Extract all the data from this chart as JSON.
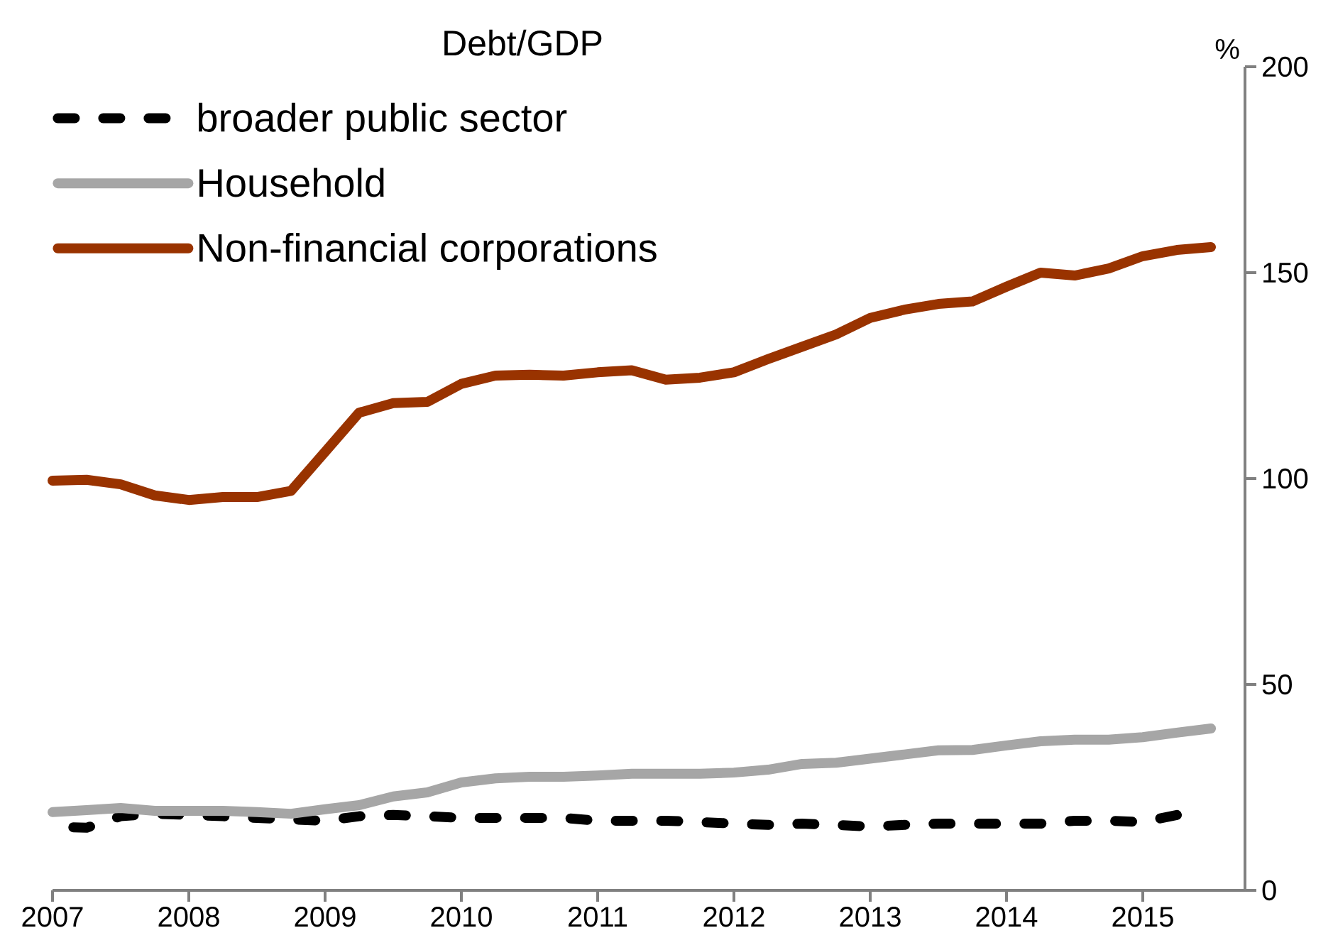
{
  "chart_data": {
    "type": "line",
    "title": "Debt/GDP",
    "ylabel": "%",
    "x": [
      2007.0,
      2007.25,
      2007.5,
      2007.75,
      2008.0,
      2008.25,
      2008.5,
      2008.75,
      2009.0,
      2009.25,
      2009.5,
      2009.75,
      2010.0,
      2010.25,
      2010.5,
      2010.75,
      2011.0,
      2011.25,
      2011.5,
      2011.75,
      2012.0,
      2012.25,
      2012.5,
      2012.75,
      2013.0,
      2013.25,
      2013.5,
      2013.75,
      2014.0,
      2014.25,
      2014.5,
      2014.75,
      2015.0,
      2015.25,
      2015.5
    ],
    "series": [
      {
        "name": "broader public sector",
        "color": "#000000",
        "line_style": "dashed",
        "values": [
          15.5,
          15.2,
          18,
          18.6,
          18.3,
          18,
          17.6,
          17.2,
          16.9,
          18,
          18.3,
          18,
          17.6,
          17.6,
          17.6,
          17.6,
          16.9,
          16.9,
          16.9,
          16.6,
          16.2,
          15.9,
          16.2,
          15.9,
          15.5,
          15.9,
          16.2,
          16.2,
          16.2,
          16.2,
          16.9,
          16.9,
          16.6,
          18.3,
          null
        ]
      },
      {
        "name": "Household",
        "color": "#a6a6a6",
        "line_style": "solid",
        "values": [
          19,
          19.5,
          20,
          19.3,
          19.3,
          19.3,
          19,
          18.6,
          19.7,
          20.7,
          22.8,
          23.8,
          26.2,
          27.2,
          27.6,
          27.6,
          27.9,
          28.3,
          28.3,
          28.3,
          28.6,
          29.3,
          30.7,
          31,
          32,
          33,
          34,
          34.1,
          35.2,
          36.2,
          36.6,
          36.6,
          37.2,
          38.3,
          39.3
        ]
      },
      {
        "name": "Non-financial corporations",
        "color": "#993300",
        "line_style": "solid",
        "values": [
          99.5,
          99.7,
          98.6,
          95.9,
          94.8,
          95.5,
          95.5,
          97,
          106.5,
          116,
          118.3,
          118.6,
          123,
          125,
          125.2,
          125,
          125.8,
          126.3,
          124,
          124.5,
          125.8,
          129,
          132,
          135,
          139,
          141,
          142.4,
          143,
          146.6,
          150,
          149.3,
          151,
          154,
          155.5,
          156.2
        ]
      }
    ],
    "xlim": [
      2007,
      2015.75
    ],
    "xticks": [
      2007,
      2008,
      2009,
      2010,
      2011,
      2012,
      2013,
      2014,
      2015
    ],
    "ylim": [
      0,
      200
    ],
    "yticks": [
      0,
      50,
      100,
      150,
      200
    ],
    "grid": false,
    "legend": "top left",
    "marker": "none"
  }
}
